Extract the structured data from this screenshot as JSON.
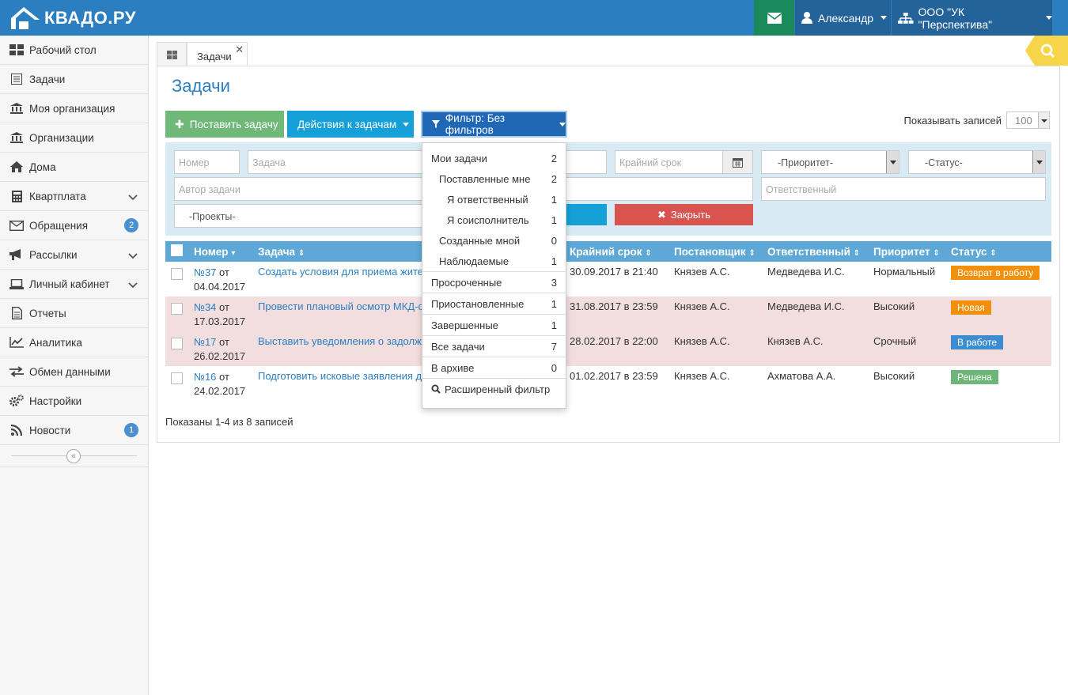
{
  "header": {
    "logo_text": "КВАДО.РУ",
    "user_name": "Александр",
    "org_name": "ООО \"УК \"Перспектива\""
  },
  "sidebar": {
    "items": [
      {
        "label": "Рабочий стол",
        "icon": "dashboard-icon"
      },
      {
        "label": "Задачи",
        "icon": "tasks-icon"
      },
      {
        "label": "Моя организация",
        "icon": "bank-icon"
      },
      {
        "label": "Организации",
        "icon": "bank-icon"
      },
      {
        "label": "Дома",
        "icon": "home-icon"
      },
      {
        "label": "Квартплата",
        "icon": "calculator-icon",
        "chevron": true
      },
      {
        "label": "Обращения",
        "icon": "envelope-icon",
        "badge": "2"
      },
      {
        "label": "Рассылки",
        "icon": "bullhorn-icon",
        "chevron": true
      },
      {
        "label": "Личный кабинет",
        "icon": "laptop-icon",
        "chevron": true
      },
      {
        "label": "Отчеты",
        "icon": "file-icon"
      },
      {
        "label": "Аналитика",
        "icon": "chart-icon"
      },
      {
        "label": "Обмен данными",
        "icon": "exchange-icon"
      },
      {
        "label": "Настройки",
        "icon": "cogs-icon"
      },
      {
        "label": "Новости",
        "icon": "rss-icon",
        "badge": "1"
      }
    ]
  },
  "tabs": {
    "tasks": "Задачи"
  },
  "page": {
    "title": "Задачи",
    "add_button": "Поставить задачу",
    "actions_button": "Действия к задачам",
    "filter_button": "Фильтр: Без фильтров",
    "show_records_label": "Показывать записей",
    "show_records_value": "100"
  },
  "filters": {
    "number_placeholder": "Номер",
    "task_placeholder": "Задача",
    "deadline_placeholder": "Крайний срок",
    "priority_value": "-Приоритет-",
    "status_value": "-Статус-",
    "author_placeholder": "Автор задачи",
    "responsible_placeholder": "Ответственный",
    "projects_value": "-Проекты-",
    "close_button": "Закрыть"
  },
  "table": {
    "headers": [
      "Номер",
      "Задача",
      "Крайний срок",
      "Постановщик",
      "Ответственный",
      "Приоритет",
      "Статус"
    ],
    "rows": [
      {
        "num": "№37",
        "ot": "от",
        "date": "04.04.2017",
        "task": "Создать условия для приема жите",
        "deadline": "30.09.2017 в 21:40",
        "author": "Князев А.С.",
        "resp": "Медведева И.С.",
        "priority": "Нормальный",
        "status": "Возврат в работу",
        "status_color": "#f0900c",
        "pink": false
      },
      {
        "num": "№34",
        "ot": "от",
        "date": "17.03.2017",
        "task": "Провести плановый осмотр МКД-о",
        "deadline": "31.08.2017 в 23:59",
        "author": "Князев А.С.",
        "resp": "Медведева И.С.",
        "priority": "Высокий",
        "status": "Новая",
        "status_color": "#f0900c",
        "pink": true
      },
      {
        "num": "№17",
        "ot": "от",
        "date": "26.02.2017",
        "task": "Выставить уведомления о задолж",
        "deadline": "28.02.2017 в 22:00",
        "author": "Князев А.С.",
        "resp": "Князев А.С.",
        "priority": "Срочный",
        "status": "В работе",
        "status_color": "#3c8dd0",
        "pink": true
      },
      {
        "num": "№16",
        "ot": "от",
        "date": "24.02.2017",
        "task": "Подготовить исковые заявления д",
        "deadline": "01.02.2017 в 23:59",
        "author": "Князев А.С.",
        "resp": "Ахматова А.А.",
        "priority": "Высокий",
        "status": "Решена",
        "status_color": "#6eb57a",
        "pink": false
      }
    ],
    "footer": "Показаны 1-4 из 8 записей"
  },
  "filter_menu": {
    "items": [
      {
        "label": "Мои задачи",
        "count": "2",
        "indent": 0
      },
      {
        "label": "Поставленные мне",
        "count": "2",
        "indent": 1
      },
      {
        "label": "Я ответственный",
        "count": "1",
        "indent": 2
      },
      {
        "label": "Я соисполнитель",
        "count": "1",
        "indent": 2
      },
      {
        "label": "Созданные мной",
        "count": "0",
        "indent": 1
      },
      {
        "label": "Наблюдаемые",
        "count": "1",
        "indent": 1,
        "sep_after": true
      },
      {
        "label": "Просроченные",
        "count": "3",
        "indent": 0,
        "sep_after": true
      },
      {
        "label": "Приостановленные",
        "count": "1",
        "indent": 0,
        "sep_after": true
      },
      {
        "label": "Завершенные",
        "count": "1",
        "indent": 0,
        "sep_after": true
      },
      {
        "label": "Все задачи",
        "count": "7",
        "indent": 0,
        "sep_after": true
      },
      {
        "label": "В архиве",
        "count": "0",
        "indent": 0,
        "sep_after": true
      }
    ],
    "advanced": "Расширенный фильтр"
  }
}
